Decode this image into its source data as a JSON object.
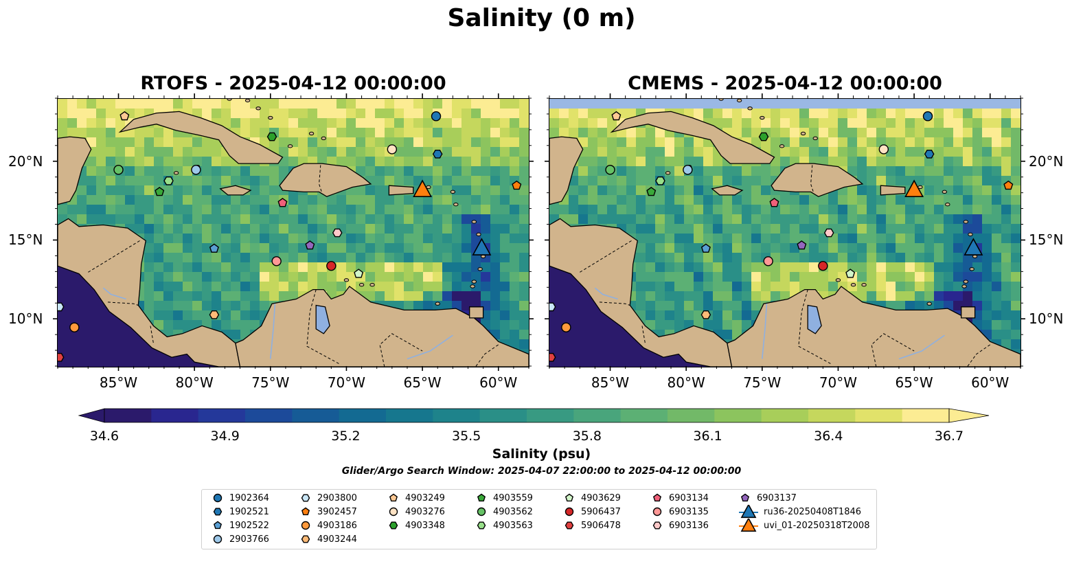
{
  "figure": {
    "title": "Salinity (0 m)",
    "colorbar_label": "Salinity (psu)",
    "search_window": "Glider/Argo Search Window: 2025-04-07 22:00:00 to 2025-04-12 00:00:00"
  },
  "colorbar": {
    "min": 34.6,
    "max": 36.7,
    "extend": "both",
    "ticks": [
      "34.6",
      "34.9",
      "35.2",
      "35.5",
      "35.8",
      "36.1",
      "36.4",
      "36.7"
    ],
    "colors": [
      "#2b1a6b",
      "#29268f",
      "#24389a",
      "#1c4a9a",
      "#165b96",
      "#136a92",
      "#16778e",
      "#1e838b",
      "#2a8f87",
      "#389a82",
      "#49a57c",
      "#5cb074",
      "#72b968",
      "#8cc45e",
      "#a8ce5a",
      "#c5d75d",
      "#e1e26a",
      "#fcec93"
    ]
  },
  "maps": [
    {
      "key": "rtofs",
      "title": "RTOFS - 2025-04-12 00:00:00"
    },
    {
      "key": "cmems",
      "title": "CMEMS - 2025-04-12 00:00:00"
    }
  ],
  "axes": {
    "lon_range": [
      -89,
      -58
    ],
    "lat_range": [
      7,
      24
    ],
    "lon_ticks": [
      "85°W",
      "80°W",
      "75°W",
      "70°W",
      "65°W",
      "60°W"
    ],
    "lat_ticks": [
      "20°N",
      "15°N",
      "10°N"
    ]
  },
  "legend_items": [
    {
      "label": "1902364",
      "marker": "circle",
      "color": "#1f77b4"
    },
    {
      "label": "1902521",
      "marker": "hexagon",
      "color": "#1f77b4"
    },
    {
      "label": "1902522",
      "marker": "pentagon",
      "color": "#5a9fd4"
    },
    {
      "label": "2903766",
      "marker": "circle",
      "color": "#9ec9ea"
    },
    {
      "label": "2903800",
      "marker": "hexagon",
      "color": "#c9e6f7"
    },
    {
      "label": "3902457",
      "marker": "pentagon",
      "color": "#ff7f0e"
    },
    {
      "label": "4903186",
      "marker": "circle",
      "color": "#ff9a3c"
    },
    {
      "label": "4903244",
      "marker": "hexagon",
      "color": "#ffbb78"
    },
    {
      "label": "4903249",
      "marker": "pentagon",
      "color": "#ffc994"
    },
    {
      "label": "4903276",
      "marker": "circle",
      "color": "#ffe3c4"
    },
    {
      "label": "4903348",
      "marker": "hexagon",
      "color": "#2ca02c"
    },
    {
      "label": "4903559",
      "marker": "pentagon",
      "color": "#3aa93a"
    },
    {
      "label": "4903562",
      "marker": "circle",
      "color": "#66c266"
    },
    {
      "label": "4903563",
      "marker": "hexagon",
      "color": "#98df8a"
    },
    {
      "label": "4903629",
      "marker": "pentagon",
      "color": "#d2f5c9"
    },
    {
      "label": "5906437",
      "marker": "circle",
      "color": "#d62728"
    },
    {
      "label": "5906478",
      "marker": "hexagon",
      "color": "#e04040"
    },
    {
      "label": "6903134",
      "marker": "pentagon",
      "color": "#f0607a"
    },
    {
      "label": "6903135",
      "marker": "circle",
      "color": "#ff9896"
    },
    {
      "label": "6903136",
      "marker": "hexagon",
      "color": "#ffc9c9"
    },
    {
      "label": "6903137",
      "marker": "pentagon",
      "color": "#9467bd"
    },
    {
      "label": "ru36-20250408T1846",
      "marker": "triangle",
      "color": "#1f77b4"
    },
    {
      "label": "uvi_01-20250318T2008",
      "marker": "triangle",
      "color": "#ff7f0e"
    }
  ],
  "floats": [
    {
      "id": "1902364",
      "lon": -64.1,
      "lat": 22.9
    },
    {
      "id": "1902521",
      "lon": -64.0,
      "lat": 20.5
    },
    {
      "id": "1902522",
      "lon": -78.7,
      "lat": 14.5
    },
    {
      "id": "2903766",
      "lon": -79.9,
      "lat": 19.5
    },
    {
      "id": "2903800",
      "lon": -88.9,
      "lat": 10.8
    },
    {
      "id": "3902457",
      "lon": -58.8,
      "lat": 18.5
    },
    {
      "id": "4903186",
      "lon": -87.9,
      "lat": 9.5
    },
    {
      "id": "4903244",
      "lon": -78.7,
      "lat": 10.3
    },
    {
      "id": "4903249",
      "lon": -84.6,
      "lat": 22.9
    },
    {
      "id": "4903276",
      "lon": -67.0,
      "lat": 20.8
    },
    {
      "id": "4903348",
      "lon": -74.9,
      "lat": 21.6
    },
    {
      "id": "4903559",
      "lon": -82.3,
      "lat": 18.1
    },
    {
      "id": "4903562",
      "lon": -85.0,
      "lat": 19.5
    },
    {
      "id": "4903563",
      "lon": -81.7,
      "lat": 18.8
    },
    {
      "id": "4903629",
      "lon": -69.2,
      "lat": 12.9
    },
    {
      "id": "5906437",
      "lon": -71.0,
      "lat": 13.4
    },
    {
      "id": "5906478",
      "lon": -88.9,
      "lat": 7.6
    },
    {
      "id": "6903134",
      "lon": -74.2,
      "lat": 17.4
    },
    {
      "id": "6903135",
      "lon": -74.6,
      "lat": 13.7
    },
    {
      "id": "6903136",
      "lon": -70.6,
      "lat": 15.5
    },
    {
      "id": "6903137",
      "lon": -72.4,
      "lat": 14.7
    },
    {
      "id": "ru36-20250408T1846",
      "lon": -61.1,
      "lat": 14.5
    },
    {
      "id": "uvi_01-20250318T2008",
      "lon": -65.0,
      "lat": 18.2
    }
  ]
}
